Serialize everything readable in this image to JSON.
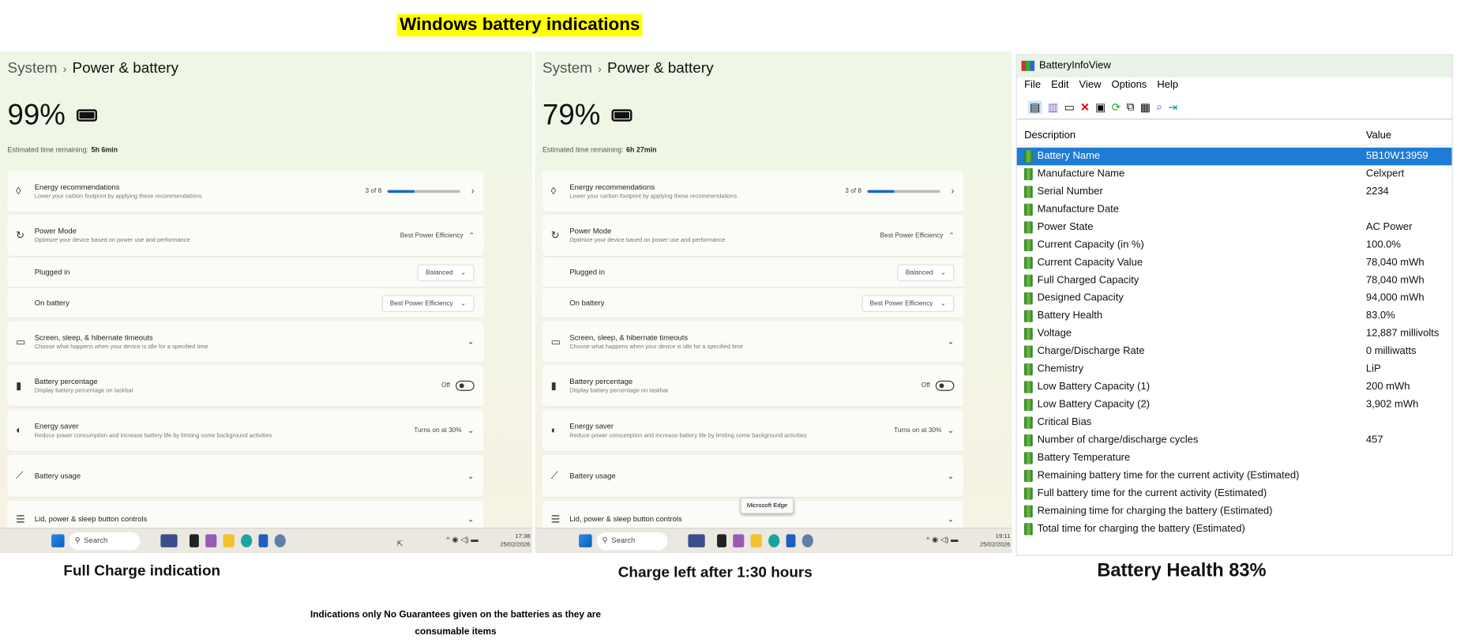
{
  "title": "Windows battery indications",
  "panels": [
    {
      "crumb_parent": "System",
      "crumb_sep": "›",
      "crumb_current": "Power & battery",
      "percent": "99%",
      "est_label": "Estimated time remaining:",
      "est_value": "5h 6min",
      "rows": [
        {
          "icon": "leaf-icon",
          "glyph": "◊",
          "title": "Energy recommendations",
          "sub": "Lower your carbon footprint by applying these recommendations",
          "control": "progress",
          "text": "3 of 8",
          "fraction": 0.375
        },
        {
          "icon": "power-mode-icon",
          "glyph": "↻",
          "title": "Power Mode",
          "sub": "Optimize your device based on power use and performance",
          "control": "expanded",
          "text": "Best Power Efficiency"
        },
        {
          "title": "Plugged in",
          "control": "dropdown",
          "text": "Balanced"
        },
        {
          "title": "On battery",
          "control": "dropdown",
          "text": "Best Power Efficiency"
        },
        {
          "icon": "sleep-icon",
          "glyph": "▭",
          "title": "Screen, sleep, & hibernate timeouts",
          "sub": "Choose what happens when your device is idle for a specified time",
          "control": "chevron"
        },
        {
          "icon": "battery-percentage-icon",
          "glyph": "▮",
          "title": "Battery percentage",
          "sub": "Display battery percentage on taskbar",
          "control": "toggle",
          "text": "Off"
        },
        {
          "icon": "energy-saver-icon",
          "glyph": "◐",
          "title": "Energy saver",
          "sub": "Reduce power consumption and increase battery life by limiting some background activities",
          "control": "chevron",
          "text": "Turns on at 30%"
        },
        {
          "icon": "chart-icon",
          "glyph": "⟋",
          "title": "Battery usage",
          "control": "chevron"
        },
        {
          "icon": "lid-controls-icon",
          "glyph": "☰",
          "title": "Lid, power & sleep button controls",
          "control": "chevron"
        }
      ],
      "taskbar": {
        "search": "Search",
        "time": "17:38",
        "date": "25/02/2026"
      },
      "caption": "Full Charge indication"
    },
    {
      "crumb_parent": "System",
      "crumb_sep": "›",
      "crumb_current": "Power & battery",
      "percent": "79%",
      "est_label": "Estimated time remaining:",
      "est_value": "6h 27min",
      "rows": [
        {
          "icon": "leaf-icon",
          "glyph": "◊",
          "title": "Energy recommendations",
          "sub": "Lower your carbon footprint by applying these recommendations",
          "control": "progress",
          "text": "3 of 8",
          "fraction": 0.375
        },
        {
          "icon": "power-mode-icon",
          "glyph": "↻",
          "title": "Power Mode",
          "sub": "Optimize your device based on power use and performance",
          "control": "expanded",
          "text": "Best Power Efficiency"
        },
        {
          "title": "Plugged in",
          "control": "dropdown",
          "text": "Balanced"
        },
        {
          "title": "On battery",
          "control": "dropdown",
          "text": "Best Power Efficiency"
        },
        {
          "icon": "sleep-icon",
          "glyph": "▭",
          "title": "Screen, sleep, & hibernate timeouts",
          "sub": "Choose what happens when your device is idle for a specified time",
          "control": "chevron"
        },
        {
          "icon": "battery-percentage-icon",
          "glyph": "▮",
          "title": "Battery percentage",
          "sub": "Display battery percentage on taskbar",
          "control": "toggle",
          "text": "Off"
        },
        {
          "icon": "energy-saver-icon",
          "glyph": "◐",
          "title": "Energy saver",
          "sub": "Reduce power consumption and increase battery life by limiting some background activities",
          "control": "chevron",
          "text": "Turns on at 30%"
        },
        {
          "icon": "chart-icon",
          "glyph": "⟋",
          "title": "Battery usage",
          "control": "chevron"
        },
        {
          "icon": "lid-controls-icon",
          "glyph": "☰",
          "title": "Lid, power & sleep button controls",
          "control": "chevron"
        }
      ],
      "tooltip": "Microsoft Edge",
      "taskbar": {
        "search": "Search",
        "time": "19:11",
        "date": "25/02/2026"
      },
      "caption": "Charge left after 1:30 hours"
    }
  ],
  "batteryinfoview": {
    "title": "BatteryInfoView",
    "menu": [
      "File",
      "Edit",
      "View",
      "Options",
      "Help"
    ],
    "col_description": "Description",
    "col_value": "Value",
    "rows": [
      [
        "Battery Name",
        "5B10W13959"
      ],
      [
        "Manufacture Name",
        "Celxpert"
      ],
      [
        "Serial Number",
        "2234"
      ],
      [
        "Manufacture Date",
        ""
      ],
      [
        "Power State",
        "AC Power"
      ],
      [
        "Current Capacity (in %)",
        "100.0%"
      ],
      [
        "Current Capacity Value",
        "78,040 mWh"
      ],
      [
        "Full Charged Capacity",
        "78,040 mWh"
      ],
      [
        "Designed Capacity",
        "94,000 mWh"
      ],
      [
        "Battery Health",
        "83.0%"
      ],
      [
        "Voltage",
        "12,887 millivolts"
      ],
      [
        "Charge/Discharge Rate",
        "0 milliwatts"
      ],
      [
        "Chemistry",
        "LiP"
      ],
      [
        "Low Battery Capacity (1)",
        "200 mWh"
      ],
      [
        "Low Battery Capacity (2)",
        "3,902 mWh"
      ],
      [
        "Critical Bias",
        ""
      ],
      [
        "Number of charge/discharge cycles",
        "457"
      ],
      [
        "Battery Temperature",
        ""
      ],
      [
        "Remaining battery time for the current activity (Estimated)",
        ""
      ],
      [
        "Full battery time for the current activity (Estimated)",
        ""
      ],
      [
        "Remaining time for charging the battery (Estimated)",
        ""
      ],
      [
        "Total  time for charging the battery (Estimated)",
        ""
      ]
    ],
    "selected_row": 0,
    "caption": "Battery Health 83%"
  },
  "footer": [
    "Indications only No Guarantees given on the batteries as they are",
    "consumable items"
  ]
}
